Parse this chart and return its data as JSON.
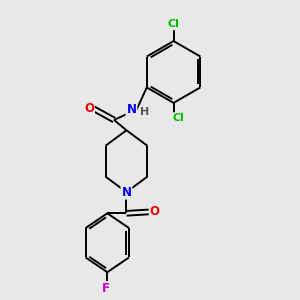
{
  "background_color": "#e8e8e8",
  "bond_color": "#000000",
  "atom_colors": {
    "Cl": "#00bb00",
    "F": "#cc00cc",
    "N": "#0000ee",
    "O": "#ee0000",
    "C": "#000000",
    "H": "#555555"
  },
  "figsize": [
    3.0,
    3.0
  ],
  "dpi": 100,
  "lw": 1.4
}
